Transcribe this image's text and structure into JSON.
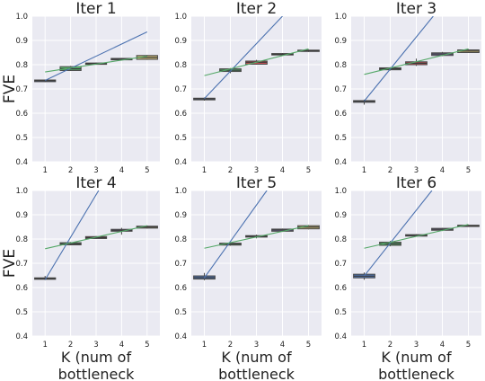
{
  "chart_data": [
    {
      "type": "box",
      "title": "Iter 1",
      "ylabel": "FVE",
      "xlabel": "",
      "x": [
        1,
        2,
        3,
        4,
        5
      ],
      "ylim": [
        0.4,
        1.0
      ],
      "yticks": [
        "0.4",
        "0.5",
        "0.6",
        "0.7",
        "0.8",
        "0.9",
        "1.0"
      ],
      "xticks": [
        "1",
        "2",
        "3",
        "4",
        "5"
      ],
      "grid": true,
      "boxes": [
        {
          "q1": 0.73,
          "median": 0.734,
          "q3": 0.737,
          "low": 0.728,
          "high": 0.739,
          "color": "#4c72b0"
        },
        {
          "q1": 0.776,
          "median": 0.783,
          "q3": 0.792,
          "low": 0.774,
          "high": 0.795,
          "color": "#55a868"
        },
        {
          "q1": 0.802,
          "median": 0.805,
          "q3": 0.807,
          "low": 0.8,
          "high": 0.809,
          "color": "#c44e52"
        },
        {
          "q1": 0.82,
          "median": 0.823,
          "q3": 0.826,
          "low": 0.818,
          "high": 0.828,
          "color": "#8172b2"
        },
        {
          "q1": 0.822,
          "median": 0.83,
          "q3": 0.838,
          "low": 0.82,
          "high": 0.84,
          "color": "#ccb974"
        }
      ],
      "fit_lines": [
        {
          "color": "#4c72b0",
          "points": [
            [
              1,
              0.735
            ],
            [
              5,
              0.935
            ]
          ]
        },
        {
          "color": "#55a868",
          "points": [
            [
              1,
              0.77
            ],
            [
              5,
              0.835
            ]
          ]
        }
      ]
    },
    {
      "type": "box",
      "title": "Iter 2",
      "ylabel": "",
      "xlabel": "",
      "x": [
        1,
        2,
        3,
        4,
        5
      ],
      "ylim": [
        0.4,
        1.0
      ],
      "yticks": [
        "0.4",
        "0.5",
        "0.6",
        "0.7",
        "0.8",
        "0.9",
        "1.0"
      ],
      "xticks": [
        "1",
        "2",
        "3",
        "4",
        "5"
      ],
      "grid": true,
      "boxes": [
        {
          "q1": 0.655,
          "median": 0.659,
          "q3": 0.662,
          "low": 0.652,
          "high": 0.665,
          "color": "#4c72b0"
        },
        {
          "q1": 0.772,
          "median": 0.777,
          "q3": 0.783,
          "low": 0.765,
          "high": 0.786,
          "color": "#55a868"
        },
        {
          "q1": 0.802,
          "median": 0.81,
          "q3": 0.815,
          "low": 0.8,
          "high": 0.82,
          "color": "#c44e52"
        },
        {
          "q1": 0.84,
          "median": 0.843,
          "q3": 0.846,
          "low": 0.838,
          "high": 0.848,
          "color": "#8172b2"
        },
        {
          "q1": 0.855,
          "median": 0.858,
          "q3": 0.86,
          "low": 0.853,
          "high": 0.862,
          "color": "#ccb974"
        }
      ],
      "fit_lines": [
        {
          "color": "#4c72b0",
          "points": [
            [
              1,
              0.66
            ],
            [
              4,
              1.0
            ]
          ]
        },
        {
          "color": "#55a868",
          "points": [
            [
              1,
              0.755
            ],
            [
              5,
              0.865
            ]
          ]
        }
      ]
    },
    {
      "type": "box",
      "title": "Iter 3",
      "ylabel": "",
      "xlabel": "",
      "x": [
        1,
        2,
        3,
        4,
        5
      ],
      "ylim": [
        0.4,
        1.0
      ],
      "yticks": [
        "0.4",
        "0.5",
        "0.6",
        "0.7",
        "0.8",
        "0.9",
        "1.0"
      ],
      "xticks": [
        "1",
        "2",
        "3",
        "4",
        "5"
      ],
      "grid": true,
      "boxes": [
        {
          "q1": 0.645,
          "median": 0.649,
          "q3": 0.652,
          "low": 0.635,
          "high": 0.656,
          "color": "#4c72b0"
        },
        {
          "q1": 0.779,
          "median": 0.783,
          "q3": 0.787,
          "low": 0.776,
          "high": 0.79,
          "color": "#55a868"
        },
        {
          "q1": 0.8,
          "median": 0.806,
          "q3": 0.812,
          "low": 0.795,
          "high": 0.825,
          "color": "#c44e52"
        },
        {
          "q1": 0.838,
          "median": 0.844,
          "q3": 0.849,
          "low": 0.835,
          "high": 0.853,
          "color": "#8172b2"
        },
        {
          "q1": 0.85,
          "median": 0.856,
          "q3": 0.861,
          "low": 0.848,
          "high": 0.864,
          "color": "#ccb974"
        }
      ],
      "fit_lines": [
        {
          "color": "#4c72b0",
          "points": [
            [
              1,
              0.65
            ],
            [
              3.65,
              1.0
            ]
          ]
        },
        {
          "color": "#55a868",
          "points": [
            [
              1,
              0.76
            ],
            [
              5,
              0.865
            ]
          ]
        }
      ]
    },
    {
      "type": "box",
      "title": "Iter 4",
      "ylabel": "FVE",
      "xlabel": "K (num of bottleneck nodes)",
      "x": [
        1,
        2,
        3,
        4,
        5
      ],
      "ylim": [
        0.4,
        1.0
      ],
      "yticks": [
        "0.4",
        "0.5",
        "0.6",
        "0.7",
        "0.8",
        "0.9",
        "1.0"
      ],
      "xticks": [
        "1",
        "2",
        "3",
        "4",
        "5"
      ],
      "grid": true,
      "boxes": [
        {
          "q1": 0.634,
          "median": 0.637,
          "q3": 0.64,
          "low": 0.631,
          "high": 0.648,
          "color": "#4c72b0"
        },
        {
          "q1": 0.776,
          "median": 0.78,
          "q3": 0.785,
          "low": 0.774,
          "high": 0.788,
          "color": "#55a868"
        },
        {
          "q1": 0.802,
          "median": 0.806,
          "q3": 0.81,
          "low": 0.8,
          "high": 0.812,
          "color": "#c44e52"
        },
        {
          "q1": 0.832,
          "median": 0.836,
          "q3": 0.84,
          "low": 0.818,
          "high": 0.846,
          "color": "#8172b2"
        },
        {
          "q1": 0.845,
          "median": 0.849,
          "q3": 0.853,
          "low": 0.843,
          "high": 0.856,
          "color": "#ccb974"
        }
      ],
      "fit_lines": [
        {
          "color": "#4c72b0",
          "points": [
            [
              1,
              0.632
            ],
            [
              3.1,
              1.0
            ]
          ]
        },
        {
          "color": "#55a868",
          "points": [
            [
              1,
              0.76
            ],
            [
              5,
              0.855
            ]
          ]
        }
      ]
    },
    {
      "type": "box",
      "title": "Iter 5",
      "ylabel": "",
      "xlabel": "K (num of bottleneck nodes)",
      "x": [
        1,
        2,
        3,
        4,
        5
      ],
      "ylim": [
        0.4,
        1.0
      ],
      "yticks": [
        "0.4",
        "0.5",
        "0.6",
        "0.7",
        "0.8",
        "0.9",
        "1.0"
      ],
      "xticks": [
        "1",
        "2",
        "3",
        "4",
        "5"
      ],
      "grid": true,
      "boxes": [
        {
          "q1": 0.635,
          "median": 0.641,
          "q3": 0.648,
          "low": 0.63,
          "high": 0.66,
          "color": "#4c72b0"
        },
        {
          "q1": 0.775,
          "median": 0.779,
          "q3": 0.783,
          "low": 0.772,
          "high": 0.786,
          "color": "#55a868"
        },
        {
          "q1": 0.808,
          "median": 0.811,
          "q3": 0.814,
          "low": 0.803,
          "high": 0.818,
          "color": "#c44e52"
        },
        {
          "q1": 0.832,
          "median": 0.837,
          "q3": 0.841,
          "low": 0.829,
          "high": 0.843,
          "color": "#8172b2"
        },
        {
          "q1": 0.842,
          "median": 0.849,
          "q3": 0.855,
          "low": 0.84,
          "high": 0.858,
          "color": "#ccb974"
        }
      ],
      "fit_lines": [
        {
          "color": "#4c72b0",
          "points": [
            [
              1,
              0.64
            ],
            [
              3.4,
              1.0
            ]
          ]
        },
        {
          "color": "#55a868",
          "points": [
            [
              1,
              0.762
            ],
            [
              5,
              0.855
            ]
          ]
        }
      ]
    },
    {
      "type": "box",
      "title": "Iter 6",
      "ylabel": "",
      "xlabel": "K (num of bottleneck nodes)",
      "x": [
        1,
        2,
        3,
        4,
        5
      ],
      "ylim": [
        0.4,
        1.0
      ],
      "yticks": [
        "0.4",
        "0.5",
        "0.6",
        "0.7",
        "0.8",
        "0.9",
        "1.0"
      ],
      "xticks": [
        "1",
        "2",
        "3",
        "4",
        "5"
      ],
      "grid": true,
      "boxes": [
        {
          "q1": 0.64,
          "median": 0.647,
          "q3": 0.655,
          "low": 0.632,
          "high": 0.662,
          "color": "#4c72b0"
        },
        {
          "q1": 0.774,
          "median": 0.78,
          "q3": 0.787,
          "low": 0.77,
          "high": 0.792,
          "color": "#55a868"
        },
        {
          "q1": 0.812,
          "median": 0.815,
          "q3": 0.818,
          "low": 0.81,
          "high": 0.82,
          "color": "#c44e52"
        },
        {
          "q1": 0.836,
          "median": 0.84,
          "q3": 0.844,
          "low": 0.833,
          "high": 0.846,
          "color": "#8172b2"
        },
        {
          "q1": 0.853,
          "median": 0.855,
          "q3": 0.857,
          "low": 0.85,
          "high": 0.858,
          "color": "#ccb974"
        }
      ],
      "fit_lines": [
        {
          "color": "#4c72b0",
          "points": [
            [
              1,
              0.648
            ],
            [
              3.6,
              1.0
            ]
          ]
        },
        {
          "color": "#55a868",
          "points": [
            [
              1,
              0.762
            ],
            [
              5,
              0.86
            ]
          ]
        }
      ]
    }
  ]
}
